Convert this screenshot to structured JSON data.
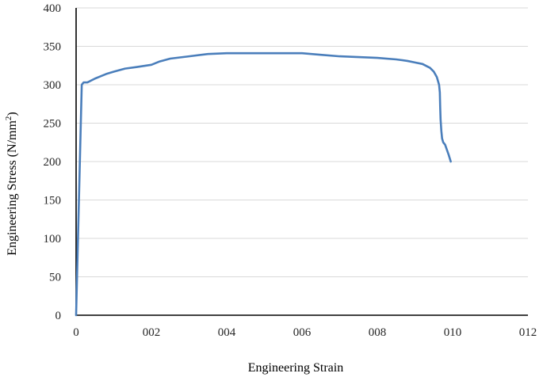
{
  "chart_data": {
    "type": "line",
    "title": "",
    "xlabel": "Engineering Strain",
    "ylabel_main": "Engineering Stress (N/mm",
    "ylabel_sup": "2",
    "ylabel_end": ")",
    "xlim": [
      0,
      0.12
    ],
    "ylim": [
      0,
      400
    ],
    "xticks": [
      0,
      0.02,
      0.04,
      0.06,
      0.08,
      0.1,
      0.12
    ],
    "xtick_labels": [
      "0",
      "002",
      "004",
      "006",
      "008",
      "010",
      "012"
    ],
    "yticks": [
      0,
      50,
      100,
      150,
      200,
      250,
      300,
      350,
      400
    ],
    "ytick_labels": [
      "0",
      "50",
      "100",
      "150",
      "200",
      "250",
      "300",
      "350",
      "400"
    ],
    "grid": true,
    "legend": "none",
    "colors": {
      "series": "#4a7ebb",
      "grid": "#d9d9d9",
      "axis": "#000000"
    },
    "series": [
      {
        "x": [
          0,
          0.0015,
          0.002,
          0.003,
          0.005,
          0.008,
          0.01,
          0.013,
          0.016,
          0.02,
          0.022,
          0.025,
          0.03,
          0.035,
          0.04,
          0.05,
          0.06,
          0.065,
          0.07,
          0.075,
          0.08,
          0.085,
          0.088,
          0.09,
          0.092,
          0.094,
          0.095,
          0.0958,
          0.0964,
          0.0966,
          0.0967,
          0.0968,
          0.097,
          0.0972,
          0.0975,
          0.098,
          0.0985,
          0.099,
          0.0995
        ],
        "y": [
          0,
          300,
          303,
          303,
          308,
          314,
          317,
          321,
          323,
          326,
          330,
          334,
          337,
          340,
          341,
          341,
          341,
          339,
          337,
          336,
          335,
          333,
          331,
          329,
          327,
          322,
          317,
          310,
          300,
          290,
          270,
          255,
          240,
          230,
          225,
          222,
          215,
          208,
          200
        ]
      }
    ]
  }
}
